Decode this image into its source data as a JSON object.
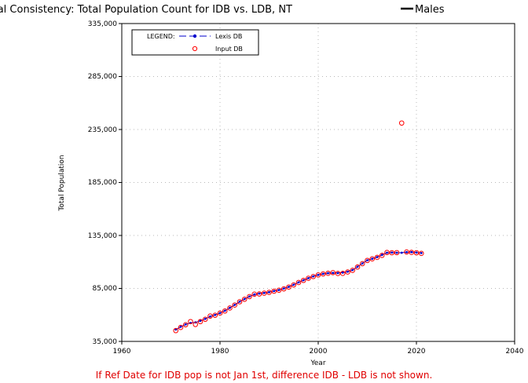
{
  "chart_data": {
    "type": "line",
    "title": "Internal Consistency: Total Population Count for IDB vs. LDB, NT",
    "title_suffix": "Males",
    "xlabel": "Year",
    "ylabel": "Total Population",
    "xlim": [
      1960,
      2040
    ],
    "ylim": [
      35000,
      335000
    ],
    "x_ticks": [
      "1960",
      "1980",
      "2000",
      "2020",
      "2040"
    ],
    "y_ticks": [
      "35,000",
      "85,000",
      "135,000",
      "185,000",
      "235,000",
      "285,000",
      "335,000"
    ],
    "grid": "dotted",
    "legend": {
      "title": "LEGEND:",
      "position": "top-left",
      "entries": [
        "Lexis DB",
        "Input DB"
      ]
    },
    "series": [
      {
        "name": "Lexis DB",
        "style": "line-with-dots",
        "color": "#0000cc",
        "x": [
          1971,
          1972,
          1973,
          1974,
          1975,
          1976,
          1977,
          1978,
          1979,
          1980,
          1981,
          1982,
          1983,
          1984,
          1985,
          1986,
          1987,
          1988,
          1989,
          1990,
          1991,
          1992,
          1993,
          1994,
          1995,
          1996,
          1997,
          1998,
          1999,
          2000,
          2001,
          2002,
          2003,
          2004,
          2005,
          2006,
          2007,
          2008,
          2009,
          2010,
          2011,
          2012,
          2013,
          2014,
          2015,
          2016,
          2017,
          2018,
          2019,
          2020,
          2021
        ],
        "y": [
          46200,
          48800,
          51000,
          52400,
          53000,
          54400,
          56300,
          58500,
          60000,
          61800,
          64000,
          66700,
          69500,
          72500,
          75000,
          77400,
          79300,
          80200,
          80700,
          81500,
          82600,
          83500,
          84900,
          86500,
          88500,
          90700,
          92800,
          94700,
          96400,
          97800,
          98800,
          99400,
          99600,
          99500,
          99900,
          100800,
          102400,
          105500,
          108600,
          111600,
          113000,
          114600,
          116700,
          118700,
          118900,
          118700,
          118700,
          119200,
          119300,
          118900,
          118400
        ]
      },
      {
        "name": "Input DB",
        "style": "open-circles",
        "color": "#ff0000",
        "x": [
          1971,
          1972,
          1973,
          1974,
          1975,
          1976,
          1977,
          1978,
          1979,
          1980,
          1981,
          1982,
          1983,
          1984,
          1985,
          1986,
          1987,
          1988,
          1989,
          1990,
          1991,
          1992,
          1993,
          1994,
          1995,
          1996,
          1997,
          1998,
          1999,
          2000,
          2001,
          2002,
          2003,
          2004,
          2005,
          2006,
          2007,
          2008,
          2009,
          2010,
          2011,
          2012,
          2013,
          2014,
          2015,
          2016,
          2017,
          2018,
          2019,
          2020,
          2021
        ],
        "y": [
          45200,
          48200,
          50700,
          53700,
          51000,
          53700,
          55900,
          58900,
          59700,
          61700,
          63700,
          66500,
          69300,
          72400,
          74800,
          77300,
          79600,
          79800,
          80500,
          81300,
          82400,
          83300,
          84600,
          86300,
          88300,
          90600,
          92600,
          94600,
          96200,
          97700,
          98700,
          99300,
          99900,
          99100,
          99200,
          100500,
          102100,
          105200,
          108400,
          111400,
          112900,
          114300,
          116200,
          118900,
          118700,
          118800,
          241100,
          119400,
          119000,
          118700,
          118100
        ]
      }
    ]
  },
  "footnote": "If Ref Date for IDB pop is not Jan 1st, difference IDB - LDB is not shown.",
  "colors": {
    "lexis": "#0000cc",
    "input": "#ff0000",
    "footnote": "#e00000"
  }
}
